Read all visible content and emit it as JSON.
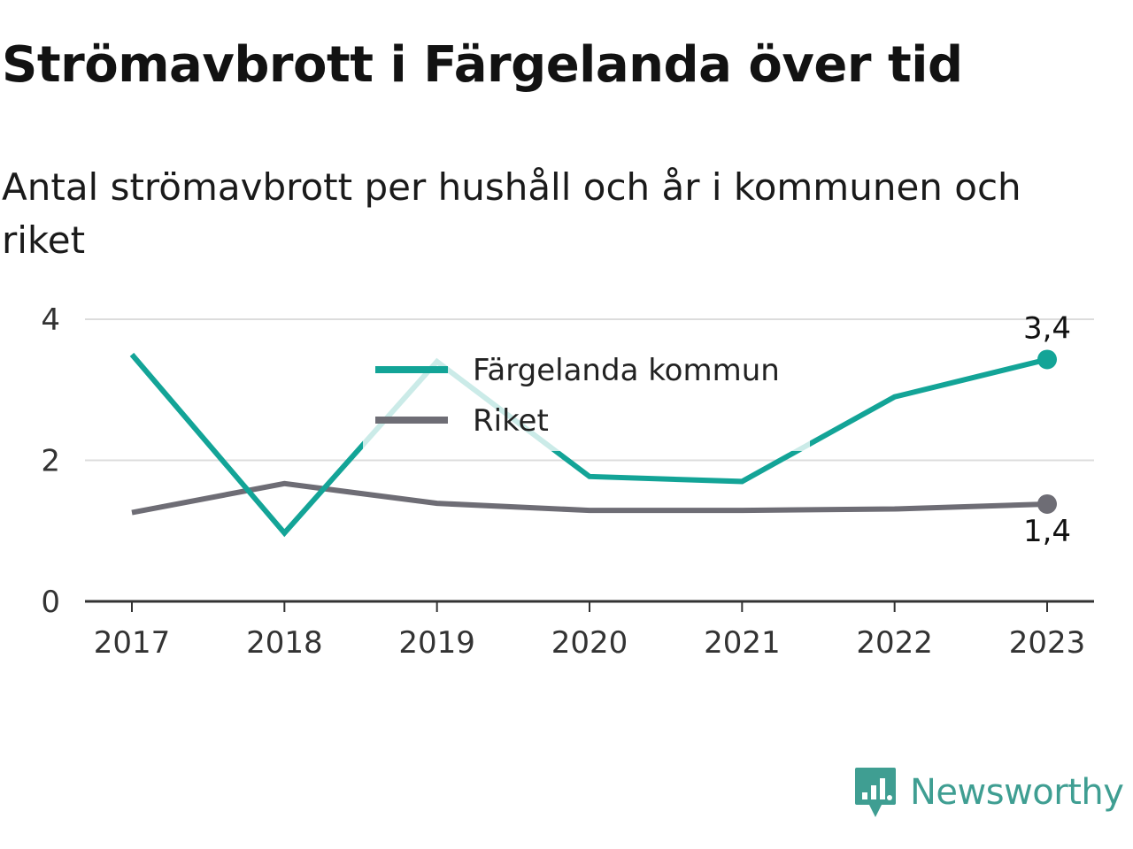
{
  "header": {
    "title": "Strömavbrott i Färgelanda över tid",
    "subtitle": "Antal strömavbrott per hushåll och år i kommunen och riket"
  },
  "brand": {
    "name": "Newsworthy",
    "icon": "newsworthy-logo-icon",
    "color": "#3f9e92"
  },
  "chart_data": {
    "type": "line",
    "title": "Strömavbrott i Färgelanda över tid",
    "subtitle": "Antal strömavbrott per hushåll och år i kommunen och riket",
    "categories": [
      "2017",
      "2018",
      "2019",
      "2020",
      "2021",
      "2022",
      "2023"
    ],
    "ylim": [
      0,
      4
    ],
    "yticks": [
      0,
      2,
      4
    ],
    "ytick_labels": [
      "0",
      "2",
      "4"
    ],
    "grid": true,
    "legend": "top-center",
    "series": [
      {
        "name": "Färgelanda kommun",
        "color": "#13a497",
        "values": [
          3.5,
          0.97,
          3.4,
          1.77,
          1.7,
          2.9,
          3.43
        ],
        "end_label": "3,4"
      },
      {
        "name": "Riket",
        "color": "#6e6d75",
        "values": [
          1.26,
          1.67,
          1.39,
          1.29,
          1.29,
          1.31,
          1.38
        ],
        "end_label": "1,4"
      }
    ]
  }
}
